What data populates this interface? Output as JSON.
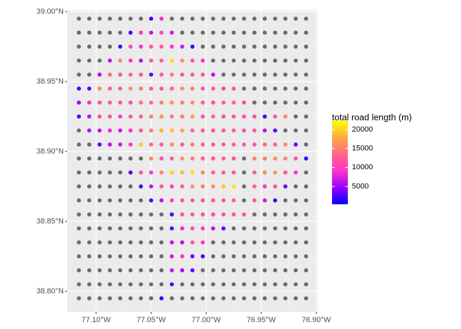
{
  "chart_data": {
    "type": "scatter",
    "legend_title": "total road length (m)",
    "x": [
      -77.1156,
      -77.1062,
      -77.0968,
      -77.0875,
      -77.0781,
      -77.0687,
      -77.0593,
      -77.05,
      -77.0406,
      -77.0312,
      -77.0218,
      -77.0125,
      -77.0031,
      -76.9937,
      -76.9843,
      -76.975,
      -76.9656,
      -76.9562,
      -76.9468,
      -76.9374,
      -76.9281,
      -76.9187,
      -76.9093
    ],
    "y": [
      38.995,
      38.985,
      38.975,
      38.965,
      38.955,
      38.945,
      38.935,
      38.925,
      38.915,
      38.905,
      38.895,
      38.885,
      38.875,
      38.865,
      38.855,
      38.845,
      38.835,
      38.825,
      38.815,
      38.805,
      38.795
    ],
    "values": [
      [
        null,
        null,
        null,
        null,
        null,
        null,
        null,
        2000,
        8500,
        null,
        null,
        null,
        null,
        null,
        null,
        null,
        null,
        null,
        null,
        null,
        null,
        null,
        null
      ],
      [
        null,
        null,
        null,
        null,
        null,
        2000,
        9500,
        6500,
        11000,
        7000,
        null,
        null,
        null,
        null,
        null,
        null,
        null,
        null,
        null,
        null,
        null,
        null,
        null
      ],
      [
        null,
        null,
        null,
        null,
        2500,
        11500,
        9000,
        12000,
        12500,
        9500,
        7000,
        2000,
        null,
        null,
        null,
        null,
        null,
        null,
        null,
        null,
        null,
        null,
        null
      ],
      [
        null,
        null,
        null,
        6500,
        15500,
        9500,
        6000,
        12000,
        13000,
        20500,
        16000,
        12000,
        9500,
        null,
        null,
        null,
        null,
        null,
        null,
        null,
        null,
        null,
        null
      ],
      [
        null,
        null,
        6000,
        14000,
        12500,
        13000,
        12000,
        3000,
        12500,
        15000,
        12000,
        13000,
        11500,
        6500,
        null,
        null,
        null,
        null,
        null,
        null,
        null,
        null,
        null
      ],
      [
        2500,
        3000,
        15500,
        13000,
        12500,
        16500,
        15000,
        12500,
        12000,
        13500,
        16000,
        15500,
        12000,
        12500,
        10500,
        12000,
        null,
        null,
        null,
        null,
        null,
        null,
        null
      ],
      [
        5000,
        9000,
        12000,
        12500,
        12000,
        11500,
        14000,
        13500,
        15500,
        16500,
        15000,
        16000,
        13000,
        11000,
        12500,
        13500,
        11000,
        null,
        null,
        null,
        null,
        null,
        null
      ],
      [
        3000,
        6500,
        11500,
        12000,
        10000,
        12500,
        13000,
        15500,
        16500,
        14500,
        15000,
        17000,
        12500,
        13000,
        11000,
        12000,
        12000,
        11000,
        2500,
        12500,
        15500,
        null,
        null
      ],
      [
        null,
        6000,
        6500,
        8500,
        7000,
        9000,
        12500,
        15000,
        18500,
        19000,
        17500,
        14000,
        13000,
        11500,
        12000,
        13000,
        11500,
        12000,
        6500,
        3000,
        null,
        null,
        null
      ],
      [
        null,
        null,
        3000,
        6000,
        7000,
        9500,
        19500,
        14000,
        12500,
        15500,
        12000,
        14500,
        13000,
        12000,
        12500,
        13000,
        12500,
        12000,
        13500,
        12500,
        15500,
        3500,
        null
      ],
      [
        null,
        null,
        null,
        null,
        null,
        null,
        null,
        15500,
        11500,
        13000,
        16500,
        15000,
        13000,
        12500,
        12500,
        12000,
        null,
        15500,
        15000,
        16000,
        15500,
        12000,
        2000
      ],
      [
        null,
        null,
        null,
        null,
        null,
        2500,
        12000,
        9500,
        15500,
        20000,
        19000,
        20500,
        15500,
        13000,
        12500,
        12000,
        null,
        12500,
        15500,
        16500,
        12000,
        9500,
        null
      ],
      [
        null,
        null,
        null,
        null,
        null,
        null,
        2500,
        6500,
        12500,
        10000,
        13500,
        16500,
        15500,
        16000,
        19500,
        21000,
        null,
        13500,
        9500,
        12000,
        3500,
        null,
        null
      ],
      [
        null,
        null,
        null,
        null,
        null,
        null,
        null,
        2500,
        6500,
        10500,
        12500,
        12500,
        12000,
        12500,
        12000,
        13000,
        null,
        12000,
        7000,
        2000,
        null,
        null,
        null
      ],
      [
        null,
        null,
        null,
        null,
        null,
        null,
        null,
        null,
        null,
        2500,
        12000,
        12500,
        12000,
        11000,
        11500,
        12500,
        12000,
        null,
        null,
        null,
        null,
        null,
        null
      ],
      [
        null,
        null,
        null,
        null,
        null,
        null,
        null,
        null,
        null,
        3000,
        8500,
        12000,
        9500,
        6500,
        3000,
        null,
        null,
        null,
        null,
        null,
        null,
        null,
        null
      ],
      [
        null,
        null,
        null,
        null,
        null,
        null,
        null,
        null,
        null,
        6500,
        6000,
        12000,
        9000,
        null,
        null,
        null,
        null,
        null,
        null,
        null,
        null,
        null,
        null
      ],
      [
        null,
        null,
        null,
        null,
        null,
        null,
        null,
        null,
        null,
        7000,
        9000,
        3500,
        2500,
        null,
        null,
        null,
        null,
        null,
        null,
        null,
        null,
        null,
        null
      ],
      [
        null,
        null,
        null,
        null,
        null,
        null,
        null,
        null,
        null,
        6500,
        5500,
        3000,
        null,
        null,
        null,
        null,
        null,
        null,
        null,
        null,
        null,
        null,
        null
      ],
      [
        null,
        null,
        null,
        null,
        null,
        null,
        null,
        null,
        null,
        2500,
        null,
        null,
        null,
        null,
        null,
        null,
        null,
        null,
        null,
        null,
        null,
        null,
        null
      ],
      [
        null,
        null,
        null,
        null,
        null,
        null,
        null,
        null,
        2000,
        null,
        null,
        null,
        null,
        null,
        null,
        null,
        null,
        null,
        null,
        null,
        null,
        null,
        null
      ]
    ],
    "xlim": [
      -77.1262,
      -76.8988
    ],
    "ylim": [
      38.7853,
      39.001
    ],
    "xticks": [
      {
        "value": -77.1,
        "label": "77.10°W"
      },
      {
        "value": -77.05,
        "label": "77.05°W"
      },
      {
        "value": -77.0,
        "label": "77.00°W"
      },
      {
        "value": -76.95,
        "label": "76.95°W"
      },
      {
        "value": -76.9,
        "label": "76.90°W"
      }
    ],
    "yticks": [
      {
        "value": 38.8,
        "label": "38.80°N"
      },
      {
        "value": 38.85,
        "label": "38.85°N"
      },
      {
        "value": 38.9,
        "label": "38.90°N"
      },
      {
        "value": 38.95,
        "label": "38.95°N"
      },
      {
        "value": 39.0,
        "label": "39.00°N"
      }
    ],
    "colorbar_lim": [
      300,
      22350
    ],
    "colorbar_ticks": [
      5000,
      10000,
      15000,
      20000
    ],
    "colorscale": [
      "#0000ff",
      "#9900ff",
      "#ff33cc",
      "#ff6688",
      "#ffaa44",
      "#ffff00"
    ],
    "na_color": "#6b6b6b",
    "grid": true
  }
}
